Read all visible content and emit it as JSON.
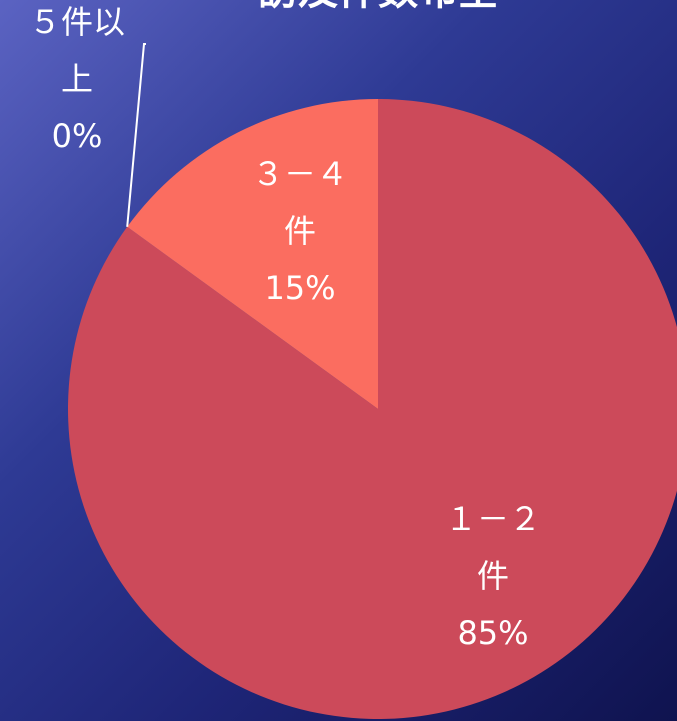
{
  "chart_data": {
    "type": "pie",
    "title": "訪及件数布全",
    "slices": [
      {
        "label_lines": [
          "１－２",
          "件"
        ],
        "percent_label": "85%",
        "value": 85,
        "color": "#cc4a5a"
      },
      {
        "label_lines": [
          "５件以",
          "上"
        ],
        "percent_label": "0%",
        "value": 0,
        "color": "#ffffff"
      },
      {
        "label_lines": [
          "３－４",
          "件"
        ],
        "percent_label": "15%",
        "value": 15,
        "color": "#fb6d60"
      }
    ],
    "start_angle_deg": 0,
    "direction": "clockwise",
    "legend": "none"
  }
}
